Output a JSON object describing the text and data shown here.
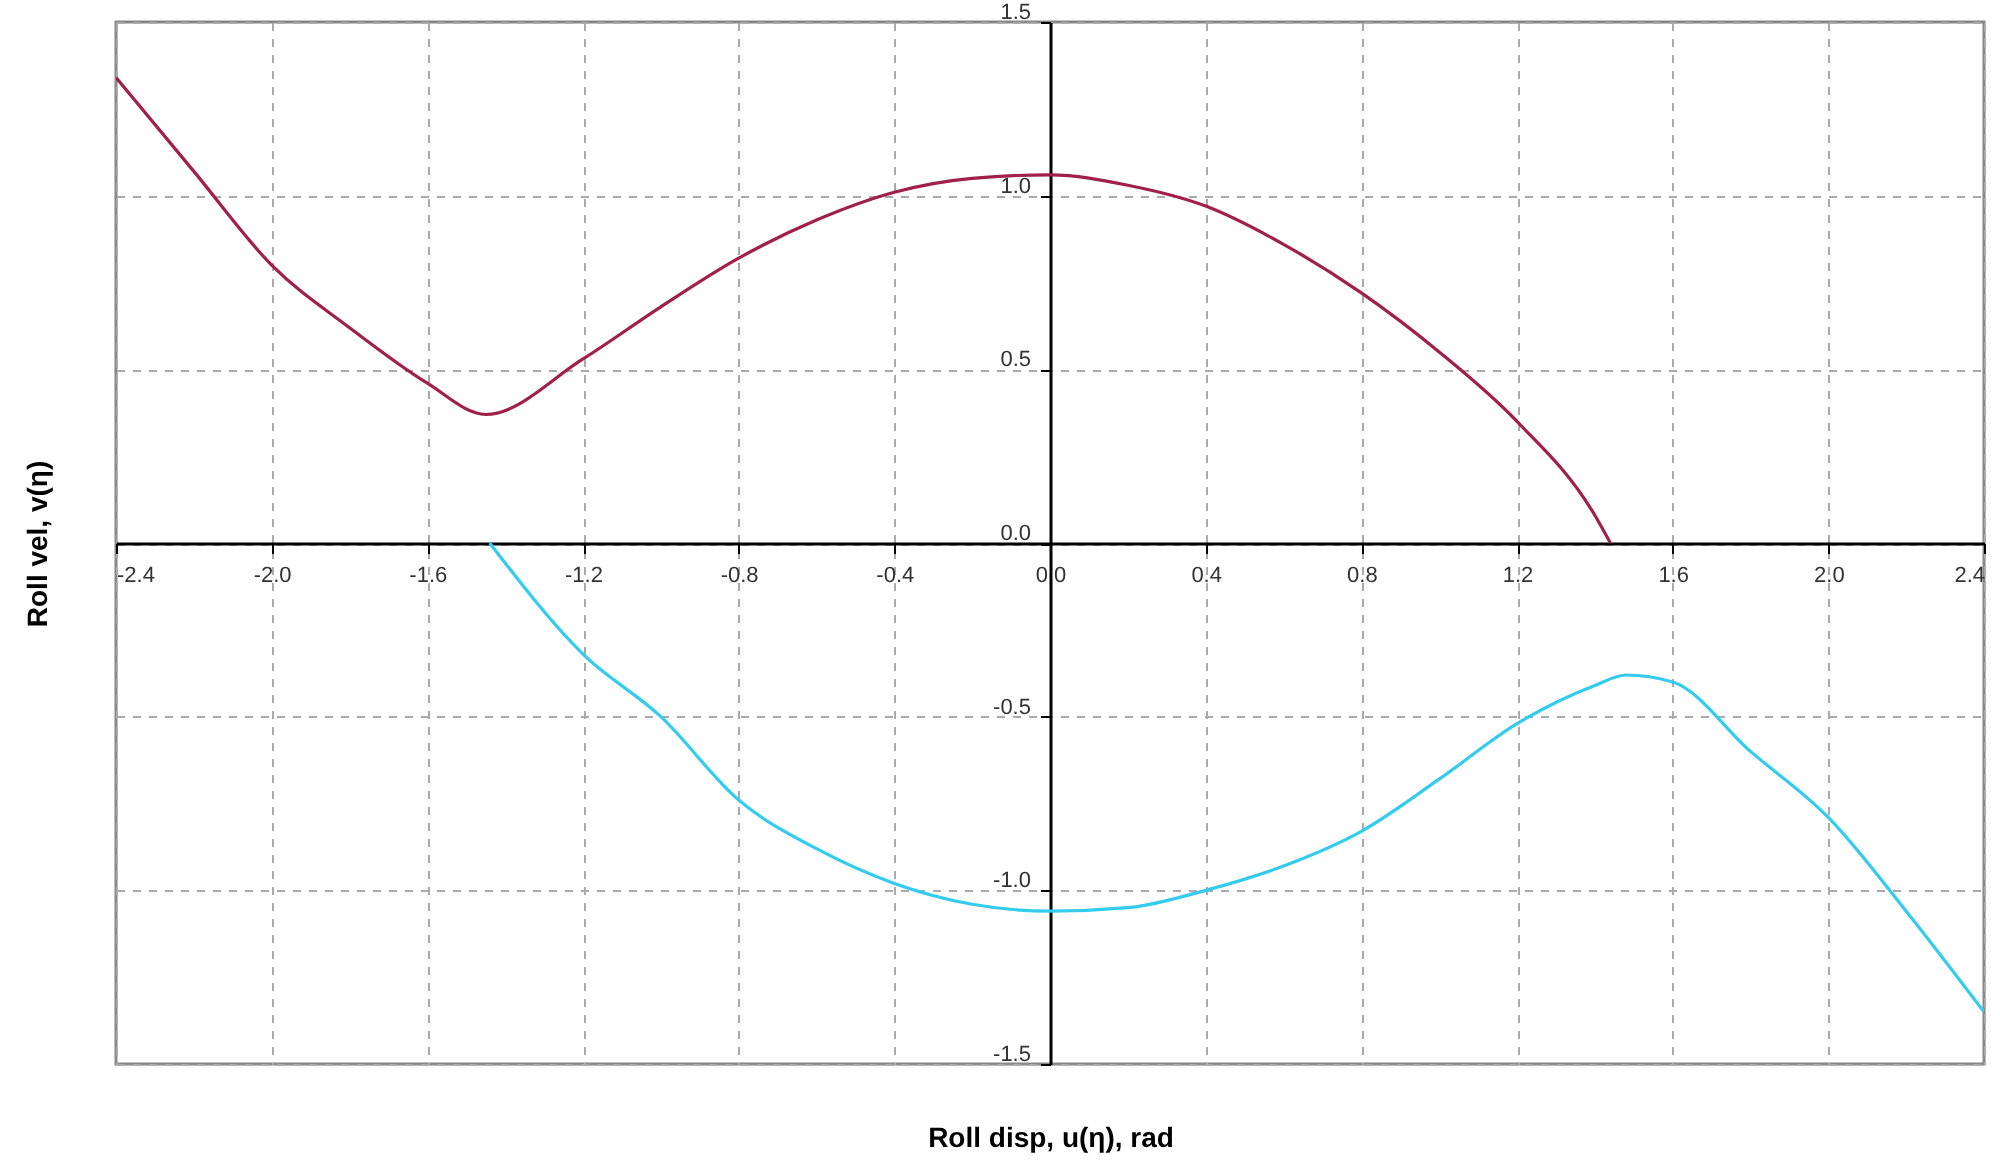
{
  "chart_data": {
    "type": "line",
    "xlabel": "Roll disp, u(η), rad",
    "ylabel": "Roll vel, v(η)",
    "xlim": [
      -2.4,
      2.4
    ],
    "ylim": [
      -1.5,
      1.5
    ],
    "xticks": [
      -2.4,
      {
        "value": -2,
        "label": "-2.0"
      },
      -1.6,
      -1.2,
      -0.8,
      -0.4,
      {
        "value": 0,
        "label": "0.0"
      },
      0.4,
      0.8,
      1.2,
      1.6,
      {
        "value": 2,
        "label": "2.0"
      },
      2.4
    ],
    "yticks": [
      -1.5,
      {
        "value": -1,
        "label": "-1.0"
      },
      -0.5,
      {
        "value": 0,
        "label": "0.0"
      },
      0.5,
      {
        "value": 1,
        "label": "1.0"
      },
      1.5
    ],
    "grid": true,
    "line_style": "solid",
    "series": [
      {
        "color": "#a0204a",
        "x": [
          -2.4,
          -2.2,
          -2.0,
          -1.8,
          -1.6,
          -1.45,
          -1.2,
          -1.0,
          -0.8,
          -0.6,
          -0.4,
          -0.2,
          0,
          0.2,
          0.4,
          0.6,
          0.8,
          1.0,
          1.2,
          1.4,
          1.44
        ],
        "values": [
          1.34,
          1.07,
          0.8,
          0.62,
          0.46,
          0.37,
          0.53,
          0.68,
          0.82,
          0.93,
          1.01,
          1.05,
          1.06,
          1.03,
          0.97,
          0.86,
          0.72,
          0.55,
          0.35,
          0.08,
          0
        ]
      },
      {
        "color": "#33ccee",
        "x": [
          -1.44,
          -1.2,
          -1.0,
          -0.8,
          -0.6,
          -0.4,
          -0.2,
          0,
          0.2,
          0.4,
          0.6,
          0.8,
          1.0,
          1.2,
          1.4,
          1.48,
          1.6,
          1.8,
          2.0,
          2.2,
          2.4
        ],
        "values": [
          0,
          -0.32,
          -0.5,
          -0.74,
          -0.88,
          -0.98,
          -1.04,
          -1.06,
          -1.05,
          -1.0,
          -0.93,
          -0.83,
          -0.68,
          -0.52,
          -0.41,
          -0.38,
          -0.4,
          -0.6,
          -0.79,
          -1.06,
          -1.35
        ]
      }
    ]
  }
}
